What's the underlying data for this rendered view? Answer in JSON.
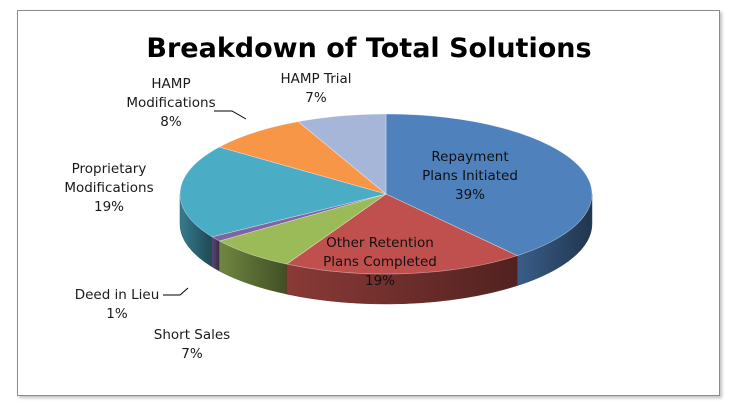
{
  "chart_data": {
    "type": "pie",
    "title": "Breakdown of Total Solutions",
    "three_d": true,
    "legend": "none",
    "slices": [
      {
        "name_lines": [
          "Repayment",
          "Plans Initiated"
        ],
        "label": "39%",
        "value": 39,
        "color": "#4f81bd",
        "label_placement": "inside"
      },
      {
        "name_lines": [
          "Other Retention",
          "Plans Completed"
        ],
        "label": "19%",
        "value": 19,
        "color": "#c0504d",
        "label_placement": "inside"
      },
      {
        "name_lines": [
          "Short Sales"
        ],
        "label": "7%",
        "value": 7,
        "color": "#9bbb59",
        "label_placement": "outside"
      },
      {
        "name_lines": [
          "Deed in Lieu"
        ],
        "label": "1%",
        "value": 1,
        "color": "#8064a2",
        "label_placement": "outside"
      },
      {
        "name_lines": [
          "Proprietary",
          "Modifications"
        ],
        "label": "19%",
        "value": 19,
        "color": "#4bacc6",
        "label_placement": "outside"
      },
      {
        "name_lines": [
          "HAMP",
          "Modifications"
        ],
        "label": "8%",
        "value": 8,
        "color": "#f79646",
        "label_placement": "outside"
      },
      {
        "name_lines": [
          "HAMP Trial"
        ],
        "label": "7%",
        "value": 7,
        "color": "#a5b6d9",
        "label_placement": "outside"
      }
    ]
  }
}
